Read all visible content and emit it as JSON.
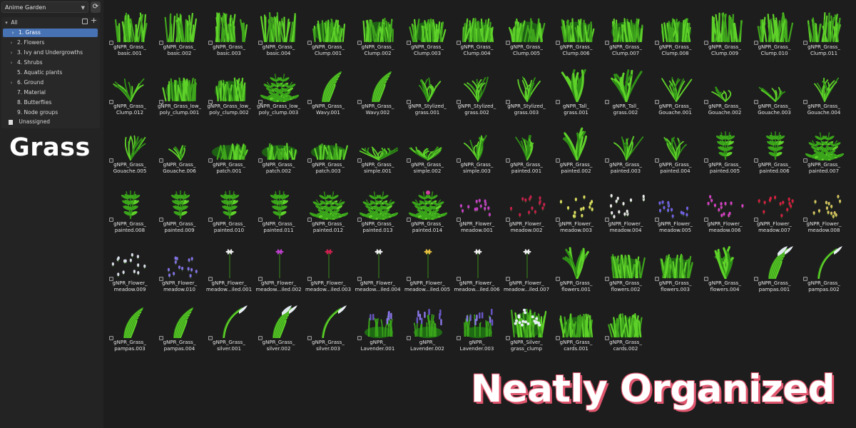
{
  "sidebar": {
    "library": "Anime Garden",
    "refresh_icon": "refresh-icon",
    "root_label": "All",
    "categories": [
      {
        "label": "1. Grass",
        "selected": true,
        "expandable": true
      },
      {
        "label": "2. Flowers",
        "expandable": true
      },
      {
        "label": "3. Ivy and Undergrowths",
        "expandable": true
      },
      {
        "label": "4. Shrubs",
        "expandable": true
      },
      {
        "label": "5. Aquatic plants",
        "expandable": false
      },
      {
        "label": "6. Ground",
        "expandable": true
      },
      {
        "label": "7. Material",
        "expandable": false
      },
      {
        "label": "8. Butterflies",
        "expandable": false
      },
      {
        "label": "9. Node groups",
        "expandable": false
      }
    ],
    "unassigned_label": "Unassigned"
  },
  "heading": "Grass",
  "tagline": "Neatly Organized",
  "colors": {
    "accent": "#4772b3",
    "grass_dark": "#1f6b14",
    "grass_light": "#5fd22a",
    "tagline_outline": "#e0566e"
  },
  "assets": [
    {
      "label": "gNPR_Grass_\nbasic.001",
      "kind": "grass"
    },
    {
      "label": "gNPR_Grass_\nbasic.002",
      "kind": "grass"
    },
    {
      "label": "gNPR_Grass_\nbasic.003",
      "kind": "grass"
    },
    {
      "label": "gNPR_Grass_\nbasic.004",
      "kind": "grass"
    },
    {
      "label": "gNPR_Grass_\nClump.001",
      "kind": "clump"
    },
    {
      "label": "gNPR_Grass_\nClump.002",
      "kind": "clump"
    },
    {
      "label": "gNPR_Grass_\nClump.003",
      "kind": "clump"
    },
    {
      "label": "gNPR_Grass_\nClump.004",
      "kind": "clump"
    },
    {
      "label": "gNPR_Grass_\nClump.005",
      "kind": "clump"
    },
    {
      "label": "gNPR_Grass_\nClump.006",
      "kind": "clump"
    },
    {
      "label": "gNPR_Grass_\nClump.007",
      "kind": "clump"
    },
    {
      "label": "gNPR_Grass_\nClump.008",
      "kind": "clump"
    },
    {
      "label": "gNPR_Grass_\nClump.009",
      "kind": "grass"
    },
    {
      "label": "gNPR_Grass_\nClump.010",
      "kind": "grass"
    },
    {
      "label": "gNPR_Grass_\nClump.011",
      "kind": "grass"
    },
    {
      "label": "gNPR_Grass_\nClump.012",
      "kind": "blades"
    },
    {
      "label": "gNPR_Grass_low_\npoly_clump.001",
      "kind": "clump"
    },
    {
      "label": "gNPR_Grass_low_\npoly_clump.002",
      "kind": "clump"
    },
    {
      "label": "gNPR_Grass_low_\npoly_clump.003",
      "kind": "fern"
    },
    {
      "label": "gNPR_Grass_\nWavy.001",
      "kind": "wavy"
    },
    {
      "label": "gNPR_Grass_\nWavy.002",
      "kind": "wavy"
    },
    {
      "label": "gNPR_Stylized_\ngrass.001",
      "kind": "sparse"
    },
    {
      "label": "gNPR_Stylized_\ngrass.002",
      "kind": "sparse"
    },
    {
      "label": "gNPR_Stylized_\ngrass.003",
      "kind": "sparse"
    },
    {
      "label": "gNPR_Tall_\ngrass.001",
      "kind": "tall"
    },
    {
      "label": "gNPR_Tall_\ngrass.002",
      "kind": "tall"
    },
    {
      "label": "gNPR_Grass_\nGouache.001",
      "kind": "sparse"
    },
    {
      "label": "gNPR_Grass_\nGouache.002",
      "kind": "tuft"
    },
    {
      "label": "gNPR_Grass_\nGouache.003",
      "kind": "tuft"
    },
    {
      "label": "gNPR_Grass_\nGouache.004",
      "kind": "sparse"
    },
    {
      "label": "gNPR_Grass_\nGouache.005",
      "kind": "sparse"
    },
    {
      "label": "gNPR_Grass_\nGouache.006",
      "kind": "tuft"
    },
    {
      "label": "gNPR_Grass_\npatch.001",
      "kind": "patch"
    },
    {
      "label": "gNPR_Grass_\npatch.002",
      "kind": "patch"
    },
    {
      "label": "gNPR_Grass_\npatch.003",
      "kind": "patch"
    },
    {
      "label": "gNPR_Grass_\nsimple.001",
      "kind": "low"
    },
    {
      "label": "gNPR_Grass_\nsimple.002",
      "kind": "low"
    },
    {
      "label": "gNPR_Grass_\nsimple.003",
      "kind": "blades"
    },
    {
      "label": "gNPR_Grass_\npainted.001",
      "kind": "blades"
    },
    {
      "label": "gNPR_Grass_\npainted.002",
      "kind": "tall"
    },
    {
      "label": "gNPR_Grass_\npainted.003",
      "kind": "blades"
    },
    {
      "label": "gNPR_Grass_\npainted.004",
      "kind": "blades"
    },
    {
      "label": "gNPR_Grass_\npainted.005",
      "kind": "stalk"
    },
    {
      "label": "gNPR_Grass_\npainted.006",
      "kind": "stalk"
    },
    {
      "label": "gNPR_Grass_\npainted.007",
      "kind": "leafy"
    },
    {
      "label": "gNPR_Grass_\npainted.008",
      "kind": "stalk"
    },
    {
      "label": "gNPR_Grass_\npainted.009",
      "kind": "stalk"
    },
    {
      "label": "gNPR_Grass_\npainted.010",
      "kind": "stalk"
    },
    {
      "label": "gNPR_Grass_\npainted.011",
      "kind": "stalk"
    },
    {
      "label": "gNPR_Grass_\npainted.012",
      "kind": "leafy"
    },
    {
      "label": "gNPR_Grass_\npainted.013",
      "kind": "leafy"
    },
    {
      "label": "gNPR_Grass_\npainted.014",
      "kind": "leafy"
    },
    {
      "label": "gNPR_Flower_\nmeadow.001",
      "kind": "dots",
      "color": "#c040c0"
    },
    {
      "label": "gNPR_Flower_\nmeadow.002",
      "kind": "dots",
      "color": "#c0204a"
    },
    {
      "label": "gNPR_Flower_\nmeadow.003",
      "kind": "dots",
      "color": "#d8d860"
    },
    {
      "label": "gNPR_Flower_\nmeadow.004",
      "kind": "dots",
      "color": "#e8e8e8"
    },
    {
      "label": "gNPR_Flower_\nmeadow.005",
      "kind": "dots",
      "color": "#7060e0"
    },
    {
      "label": "gNPR_Flower_\nmeadow.006",
      "kind": "dots",
      "color": "#d040c0"
    },
    {
      "label": "gNPR_Flower_\nmeadow.007",
      "kind": "dots",
      "color": "#d02040"
    },
    {
      "label": "gNPR_Flower_\nmeadow.008",
      "kind": "dots",
      "color": "#d0c060"
    },
    {
      "label": "gNPR_Flower_\nmeadow.009",
      "kind": "dots",
      "color": "#d8dde8"
    },
    {
      "label": "gNPR_Flower_\nmeadow.010",
      "kind": "dots",
      "color": "#8070e0"
    },
    {
      "label": "gNPR_Flower_\nmeadow...iled.001",
      "kind": "flower",
      "color": "#f0f0f0"
    },
    {
      "label": "gNPR_Flower_\nmeadow...iled.002",
      "kind": "flower",
      "color": "#c040d0"
    },
    {
      "label": "gNPR_Flower_\nmeadow...iled.003",
      "kind": "flower",
      "color": "#d02050"
    },
    {
      "label": "gNPR_Flower_\nmeadow...iled.004",
      "kind": "flower",
      "color": "#f0f0f0"
    },
    {
      "label": "gNPR_Flower_\nmeadow...iled.005",
      "kind": "flower",
      "color": "#e8c040"
    },
    {
      "label": "gNPR_Flower_\nmeadow...iled.006",
      "kind": "flower",
      "color": "#f0f0f0"
    },
    {
      "label": "gNPR_Flower_\nmeadow...iled.007",
      "kind": "flower",
      "color": "#f0f0f0"
    },
    {
      "label": "gNPR_Grass_\nflowers.001",
      "kind": "tall"
    },
    {
      "label": "gNPR_Grass_\nflowers.002",
      "kind": "clump"
    },
    {
      "label": "gNPR_Grass_\nflowers.003",
      "kind": "clump"
    },
    {
      "label": "gNPR_Grass_\nflowers.004",
      "kind": "tall"
    },
    {
      "label": "gNPR_Grass_\npampas.001",
      "kind": "pampas"
    },
    {
      "label": "gNPR_Grass_\npampas.002",
      "kind": "plume"
    },
    {
      "label": "gNPR_Grass_\npampas.003",
      "kind": "wavy"
    },
    {
      "label": "gNPR_Grass_\npampas.004",
      "kind": "wavy"
    },
    {
      "label": "gNPR_Grass_\nsilver.001",
      "kind": "plume"
    },
    {
      "label": "gNPR_Grass_\nsilver.002",
      "kind": "pampas"
    },
    {
      "label": "gNPR_Grass_\nsilver.003",
      "kind": "plume"
    },
    {
      "label": "gNPR_\nLavender.001",
      "kind": "lavender"
    },
    {
      "label": "gNPR_\nLavender.002",
      "kind": "lavender"
    },
    {
      "label": "gNPR_\nLavender.003",
      "kind": "lavender"
    },
    {
      "label": "gNPR_Silver_\ngrass_clump",
      "kind": "silverclump"
    },
    {
      "label": "gNPR_Grass_\ncards.001",
      "kind": "clump"
    },
    {
      "label": "gNPR_Grass_\ncards.002",
      "kind": "clump"
    }
  ]
}
